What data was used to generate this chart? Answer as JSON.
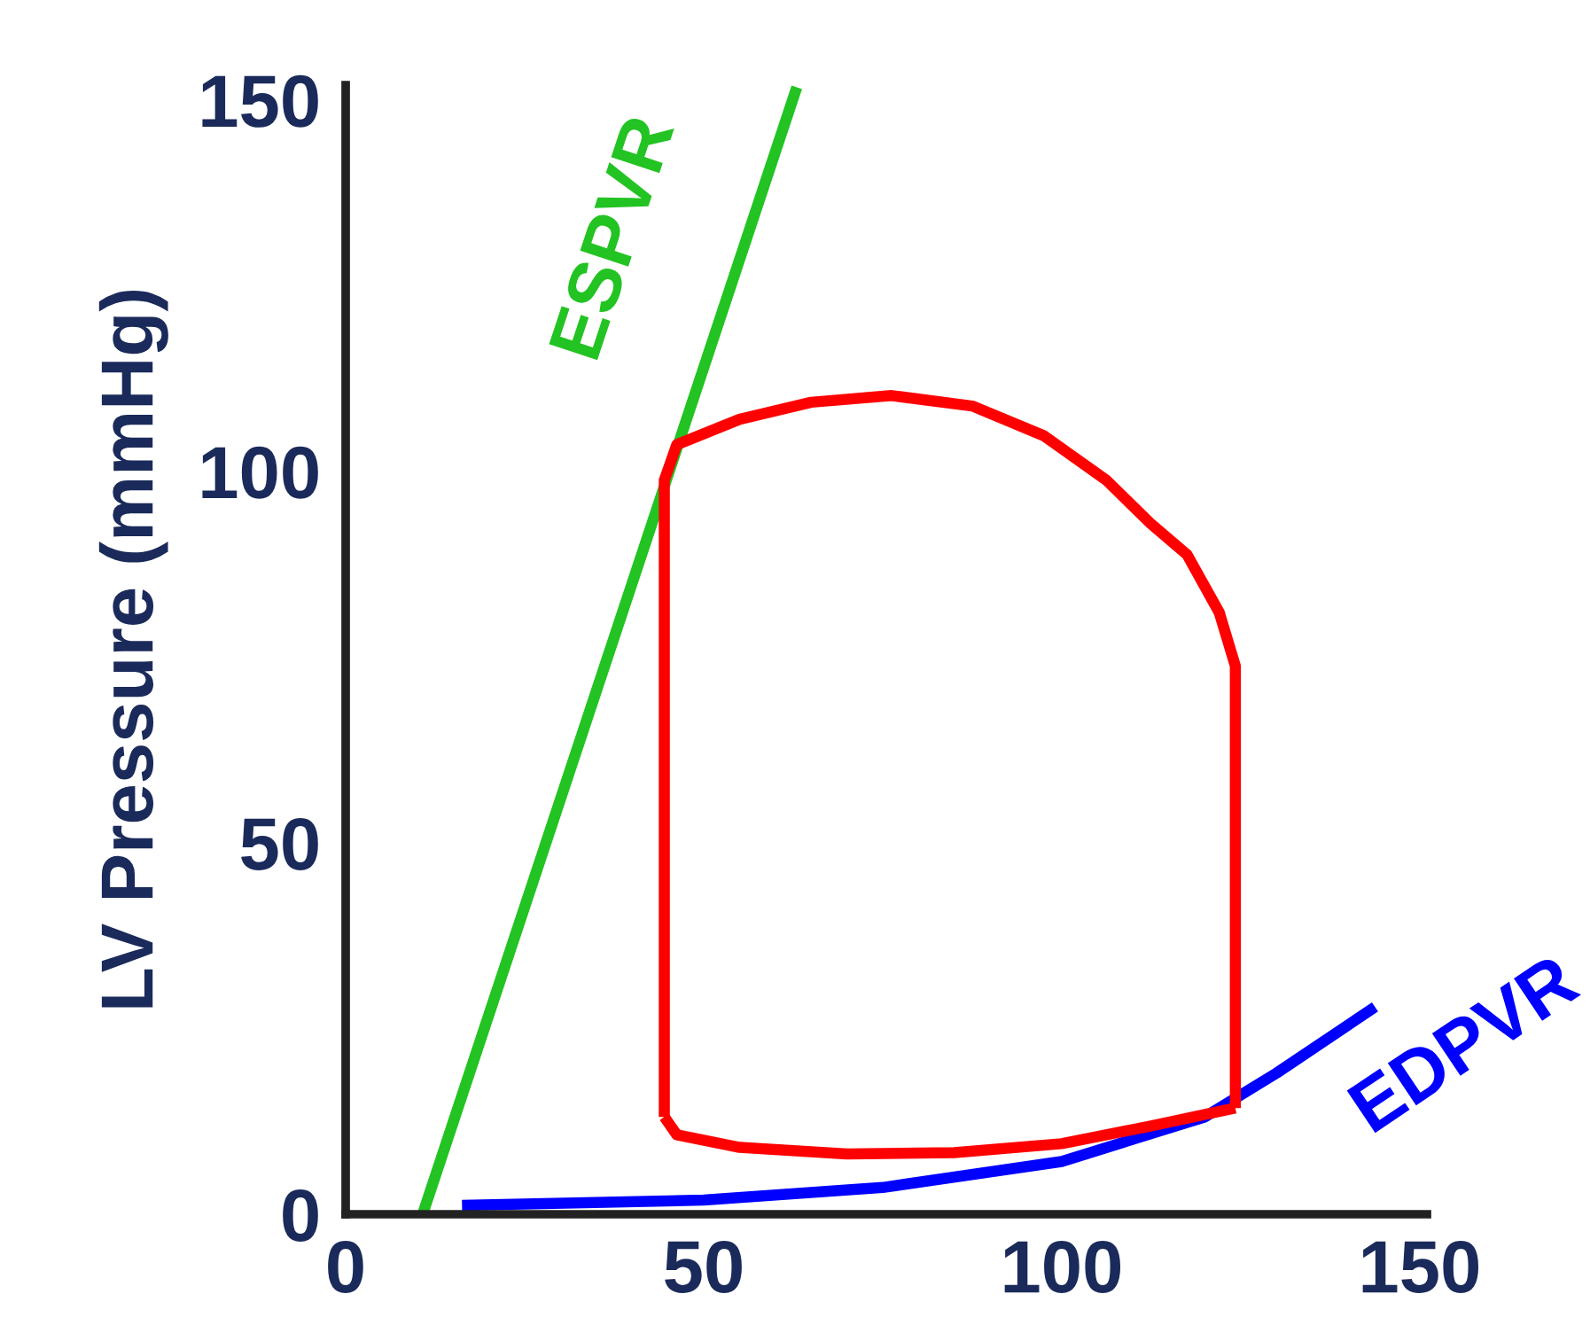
{
  "chart_data": {
    "type": "line",
    "ylabel": "LV Pressure (mmHg)",
    "xlim": [
      0,
      151
    ],
    "ylim": [
      0,
      152
    ],
    "xticks": [
      0,
      50,
      100,
      150
    ],
    "yticks": [
      0,
      50,
      100,
      150
    ],
    "grid": false,
    "legend": false,
    "marker": "none",
    "line_style": "solid",
    "series": [
      {
        "name": "ESPVR",
        "color": "#22c322",
        "x": [
          10.75,
          63
        ],
        "values": [
          0,
          151.7
        ]
      },
      {
        "name": "EDPVR",
        "color": "#0000ff",
        "x": [
          16.25,
          50,
          75,
          100,
          120,
          130,
          143.75
        ],
        "values": [
          1.2,
          1.9,
          3.6,
          7.1,
          13.1,
          19,
          27.9
        ]
      },
      {
        "color": "#ff0000",
        "x": [
          44.5,
          44.5,
          46.25,
          55,
          65,
          76.25,
          87.5,
          97.5,
          106.25,
          112.5,
          117.5,
          122,
          124.25,
          124.25
        ],
        "values": [
          13.1,
          98.8,
          103.6,
          107,
          109.3,
          110.2,
          108.8,
          104.8,
          98.8,
          92.9,
          88.8,
          81,
          73.8,
          14.3
        ]
      },
      {
        "color": "#ff0000",
        "x": [
          44.5,
          46.25,
          55,
          70,
          85,
          100,
          112.5,
          124.25
        ],
        "values": [
          13.1,
          10.7,
          9,
          8.1,
          8.3,
          9.5,
          11.9,
          14.3
        ]
      }
    ]
  }
}
